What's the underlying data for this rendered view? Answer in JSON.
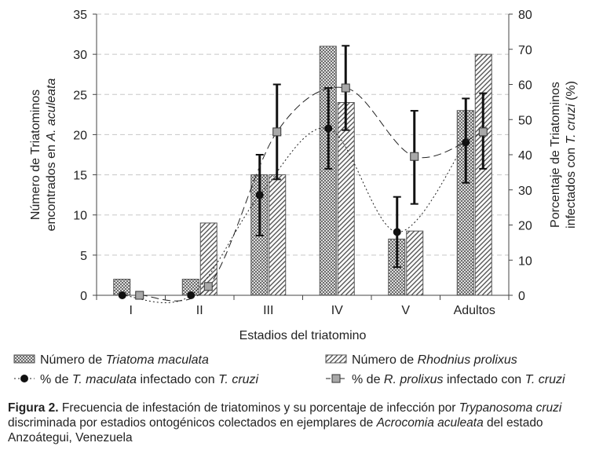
{
  "chart_data": {
    "type": "bar",
    "categories": [
      "I",
      "II",
      "III",
      "IV",
      "V",
      "Adultos"
    ],
    "xlabel": "Estadios del triatomino",
    "ylabel_left_line1": "Número de Triatominos",
    "ylabel_left_line2_pre": "encontrados en ",
    "ylabel_left_line2_it": "A. aculeata",
    "ylabel_right_line1": "Porcentaje de Triatominos",
    "ylabel_right_line2_pre": "infectados con ",
    "ylabel_right_line2_it": "T. cruzi",
    "ylabel_right_line2_post": " (%)",
    "ylim_left": [
      0,
      35
    ],
    "yticks_left": [
      0,
      5,
      10,
      15,
      20,
      25,
      30,
      35
    ],
    "ylim_right": [
      0,
      80
    ],
    "yticks_right": [
      0,
      10,
      20,
      30,
      40,
      50,
      60,
      70,
      80
    ],
    "grid": true,
    "series": [
      {
        "name": "Número de Triatoma maculata",
        "axis": "left",
        "kind": "bar",
        "pattern": "crosshatch",
        "values": [
          2,
          2,
          15,
          31,
          7,
          23
        ]
      },
      {
        "name": "Número de Rhodnius prolixus",
        "axis": "left",
        "kind": "bar",
        "pattern": "diagonal",
        "values": [
          0,
          9,
          15,
          24,
          8,
          30
        ]
      },
      {
        "name": "% de T. maculata infectado con T. cruzi",
        "axis": "right",
        "kind": "line",
        "marker": "circle",
        "line_style": "dotted",
        "values": [
          0,
          0,
          28.5,
          47.5,
          18,
          43.5
        ],
        "err_low": [
          0,
          0,
          17,
          36,
          8,
          32
        ],
        "err_high": [
          0,
          0,
          40,
          59,
          28,
          56
        ]
      },
      {
        "name": "% de R. prolixus infectado con T. cruzi",
        "axis": "right",
        "kind": "line",
        "marker": "square",
        "line_style": "dashed",
        "values": [
          0,
          2.5,
          46.5,
          59,
          39.5,
          46.5
        ],
        "err_low": [
          0,
          2.5,
          33,
          47,
          26,
          36
        ],
        "err_high": [
          0,
          2.5,
          60,
          71,
          52.5,
          57.5
        ]
      }
    ],
    "legend": {
      "placement": "bottom",
      "items": [
        {
          "pre": "Número de ",
          "it": "Triatoma maculata",
          "post": ""
        },
        {
          "pre": "Número de ",
          "it": "Rhodnius prolixus",
          "post": ""
        },
        {
          "pre": "% de ",
          "it": "T. maculata",
          "post": " infectado con ",
          "it2": "T. cruzi"
        },
        {
          "pre": "% de ",
          "it": "R. prolixus",
          "post": " infectado con ",
          "it2": "T. cruzi"
        }
      ]
    }
  },
  "caption": {
    "label": "Figura 2.",
    "t1": " Frecuencia de infestación de triatominos y su porcentaje de infección por ",
    "i1": "Trypanosoma cruzi",
    "t2": " discriminada por estadios ontogénicos colectados en ejemplares de ",
    "i2": "Acrocomia aculeata",
    "t3": " del estado Anzoátegui, Venezuela"
  },
  "colors": {
    "bar_fill": "#ffffff",
    "bar_stroke": "#555555",
    "hatch": "#555555",
    "grid": "#c8c8c8",
    "axis": "#444444",
    "marker_circle": "#111111",
    "marker_square": "#a8a8a8",
    "errorbar": "#111111"
  }
}
